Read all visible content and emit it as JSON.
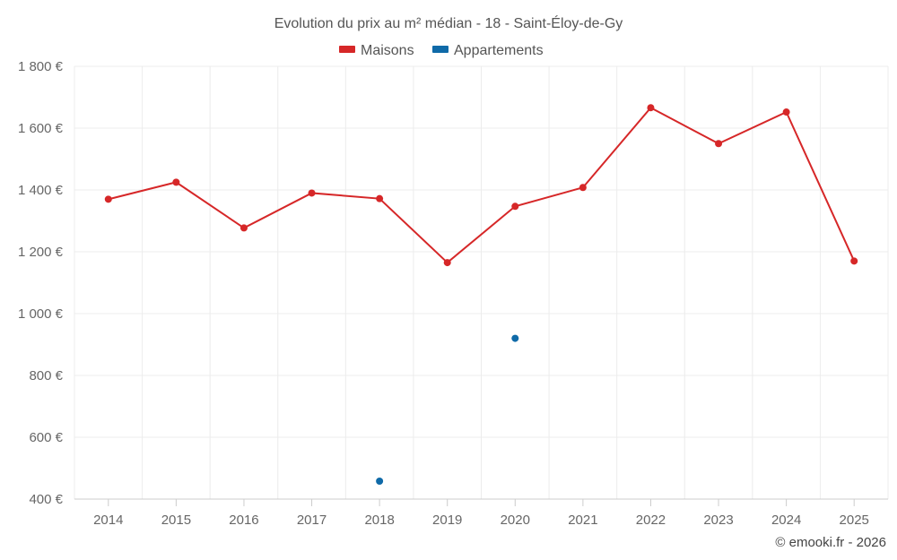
{
  "chart_data": {
    "type": "line",
    "title": "Evolution du prix au m² médian - 18 - Saint-Éloy-de-Gy",
    "categories": [
      "2014",
      "2015",
      "2016",
      "2017",
      "2018",
      "2019",
      "2020",
      "2021",
      "2022",
      "2023",
      "2024",
      "2025"
    ],
    "series": [
      {
        "name": "Maisons",
        "color": "#d62728",
        "values": [
          1370,
          1425,
          1277,
          1390,
          1372,
          1165,
          1347,
          1408,
          1666,
          1550,
          1652,
          1170
        ]
      },
      {
        "name": "Appartements",
        "color": "#0f6aa8",
        "values": [
          null,
          null,
          null,
          null,
          458,
          null,
          920,
          null,
          null,
          null,
          null,
          null
        ]
      }
    ],
    "ylim": [
      400,
      1800
    ],
    "yticks": [
      400,
      600,
      800,
      1000,
      1200,
      1400,
      1600,
      1800
    ],
    "ytick_labels": [
      "400 €",
      "600 €",
      "800 €",
      "1 000 €",
      "1 200 €",
      "1 400 €",
      "1 600 €",
      "1 800 €"
    ],
    "legend_position": "top-center",
    "grid": true
  },
  "credit": "© emooki.fr - 2026"
}
